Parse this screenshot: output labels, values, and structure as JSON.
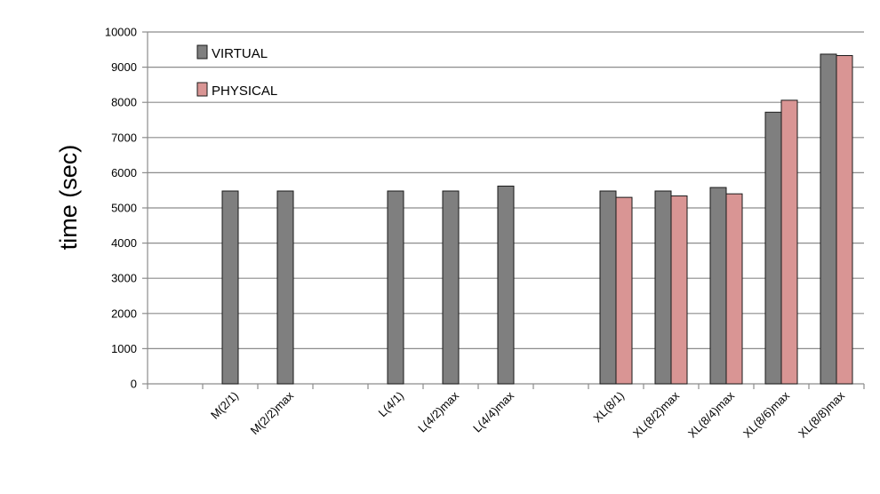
{
  "chart_data": {
    "type": "bar",
    "title": "",
    "xlabel": "",
    "ylabel": "time (sec)",
    "ylim": [
      0,
      10000
    ],
    "yticks": [
      0,
      1000,
      2000,
      3000,
      4000,
      5000,
      6000,
      7000,
      8000,
      9000,
      10000
    ],
    "grid": true,
    "legend_position": "top-left",
    "categories": [
      "",
      "M(2/1)",
      "M(2/2)max",
      "",
      "L(4/1)",
      "L(4/2)max",
      "L(4/4)max",
      "",
      "XL(8/1)",
      "XL(8/2)max",
      "XL(8/4)max",
      "XL(8/6)max",
      "XL(8/8)max"
    ],
    "series": [
      {
        "name": "VIRTUAL",
        "color": "#7f7f7f",
        "values": [
          null,
          5480,
          5480,
          null,
          5480,
          5480,
          5620,
          null,
          5480,
          5480,
          5580,
          7720,
          9370
        ]
      },
      {
        "name": "PHYSICAL",
        "color": "#d99594",
        "values": [
          null,
          null,
          null,
          null,
          null,
          null,
          null,
          null,
          5300,
          5340,
          5400,
          8060,
          9330
        ]
      }
    ]
  }
}
